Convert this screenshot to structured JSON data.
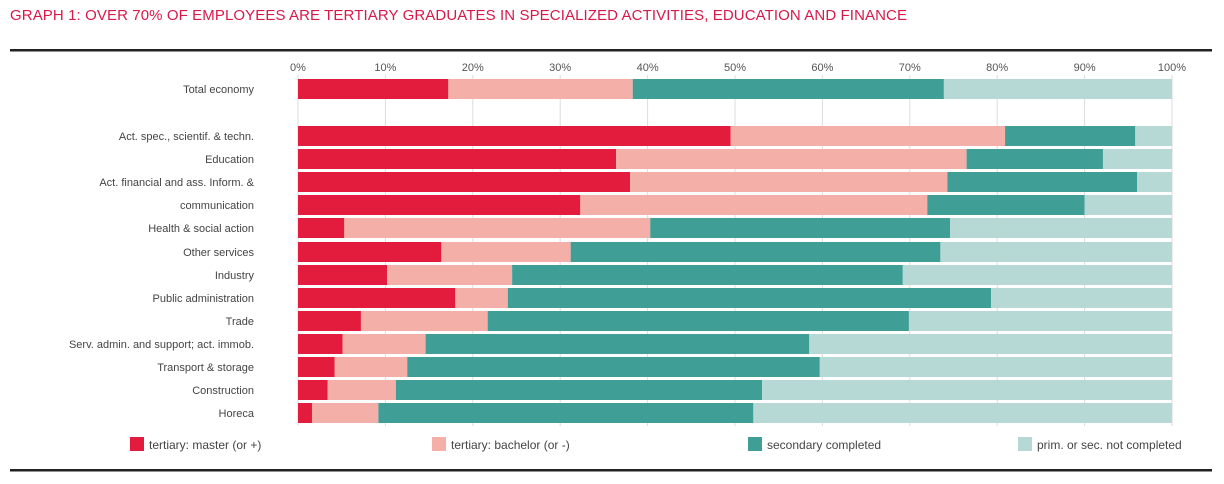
{
  "chart_data": {
    "type": "bar",
    "orientation": "horizontal",
    "stacked": true,
    "title": "GRAPH 1: OVER 70% OF EMPLOYEES ARE TERTIARY GRADUATES IN SPECIALIZED ACTIVITIES, EDUCATION AND FINANCE",
    "xlabel": "",
    "ylabel": "",
    "xlim": [
      0,
      100
    ],
    "x_ticks": [
      "0%",
      "10%",
      "20%",
      "30%",
      "40%",
      "50%",
      "60%",
      "70%",
      "80%",
      "90%",
      "100%"
    ],
    "grid": true,
    "legend_position": "bottom",
    "categories": [
      "Total economy",
      "Act. spec., scientif. & techn.",
      "Education",
      "Act. financial and ass. Inform. &",
      "communication",
      "Health & social action",
      "Other services",
      "Industry",
      "Public administration",
      "Trade",
      "Serv. admin. and support; act. immob.",
      "Transport & storage",
      "Construction",
      "Horeca"
    ],
    "series": [
      {
        "name": "tertiary: master (or +)",
        "color": "#e31c3d",
        "values": [
          17.2,
          49.5,
          36.4,
          38.0,
          32.3,
          5.3,
          16.4,
          10.2,
          18.0,
          7.2,
          5.1,
          4.2,
          3.4,
          1.6
        ]
      },
      {
        "name": "tertiary: bachelor (or -)",
        "color": "#f4b0a8",
        "values": [
          21.1,
          31.4,
          40.1,
          36.3,
          39.7,
          35.0,
          14.8,
          14.3,
          6.0,
          14.5,
          9.5,
          8.3,
          7.8,
          7.6
        ]
      },
      {
        "name": "secondary completed",
        "color": "#3f9e96",
        "values": [
          35.6,
          14.9,
          15.6,
          21.7,
          18.0,
          34.3,
          42.3,
          44.7,
          55.3,
          48.2,
          43.9,
          47.2,
          41.9,
          42.9
        ]
      },
      {
        "name": "prim. or sec. not completed",
        "color": "#b6d9d5",
        "values": [
          26.1,
          4.2,
          7.9,
          4.0,
          10.0,
          25.4,
          26.5,
          30.8,
          20.7,
          30.1,
          41.5,
          40.3,
          46.9,
          47.9
        ]
      }
    ]
  }
}
